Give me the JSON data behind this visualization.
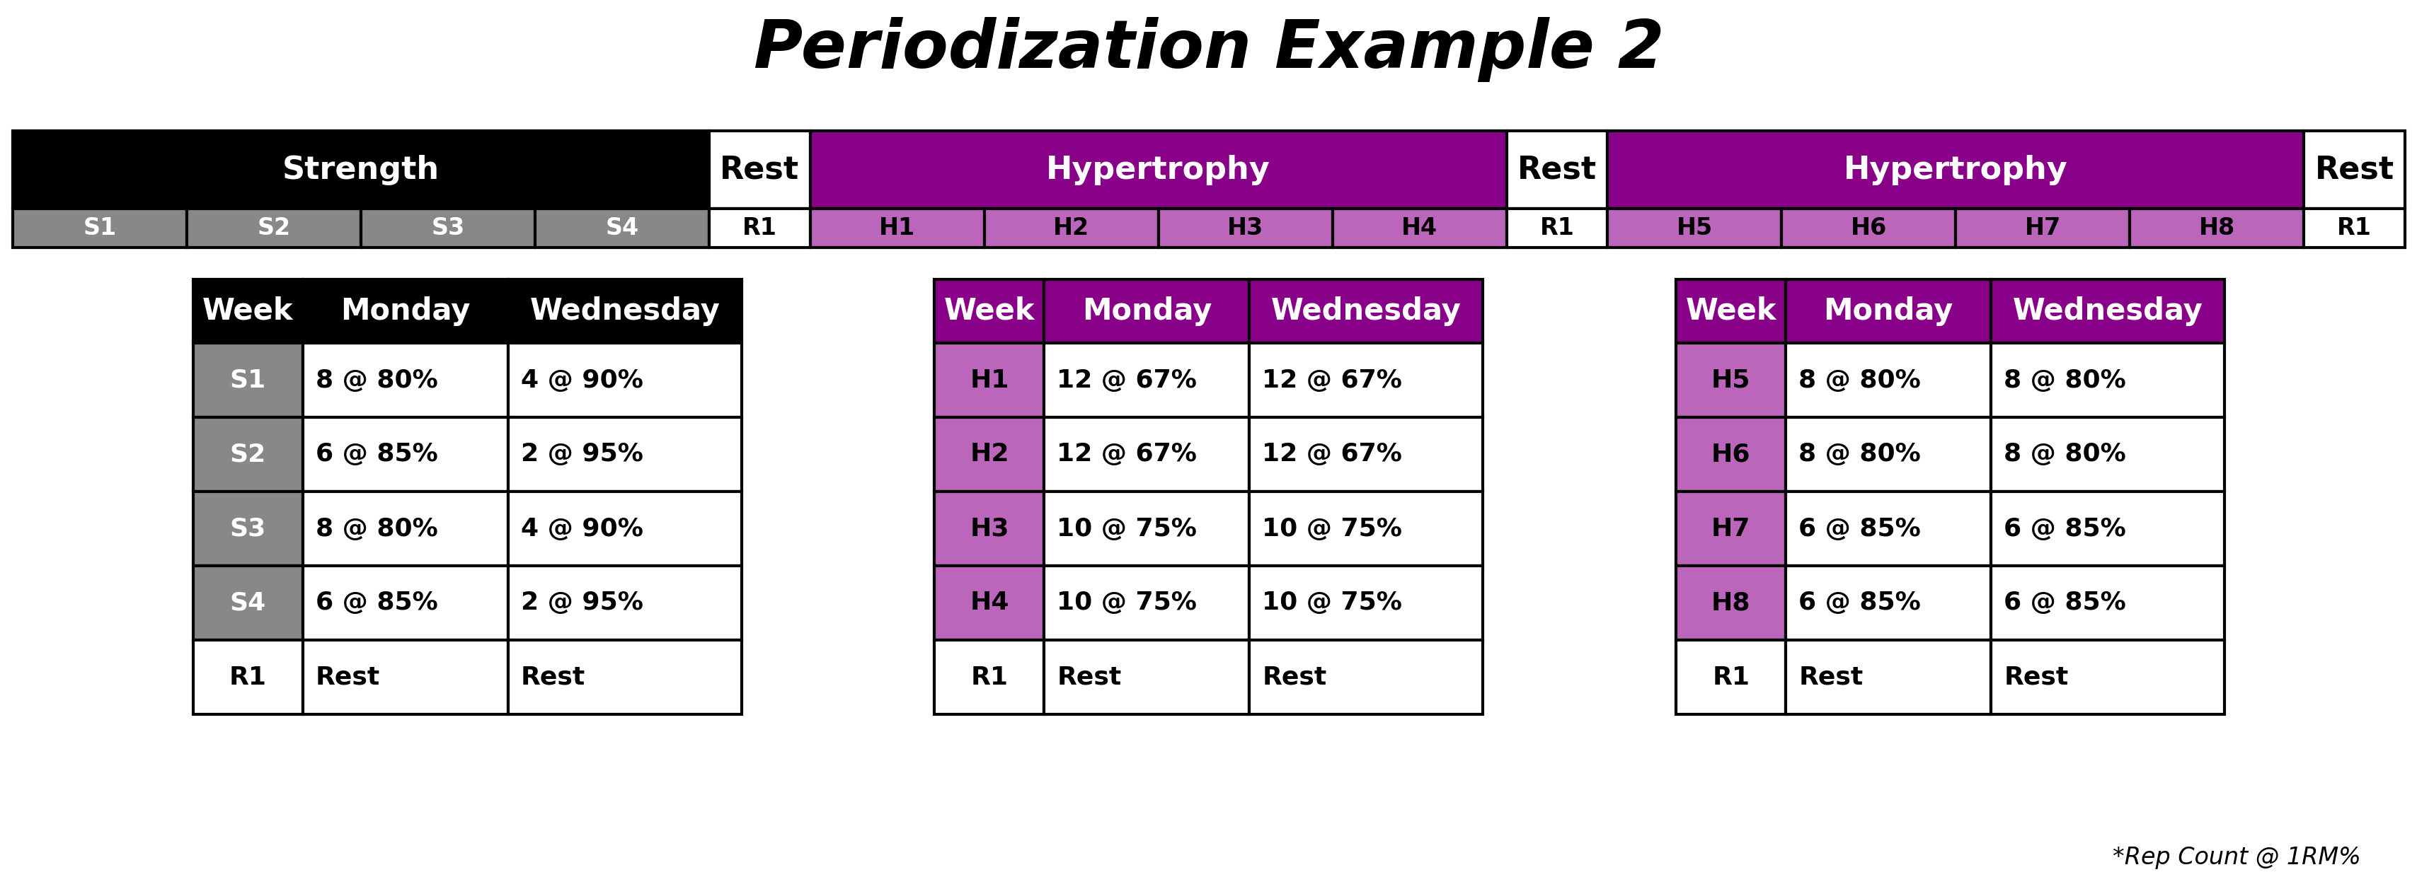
{
  "title": "Periodization Example 2",
  "title_fontsize": 68,
  "title_fontweight": "bold",
  "title_fontstyle": "italic",
  "timeline_cells": [
    {
      "label": "Strength",
      "span": 4,
      "bg": "#000000",
      "fg": "#ffffff",
      "bold": true
    },
    {
      "label": "Rest",
      "span": 1,
      "bg": "#ffffff",
      "fg": "#000000",
      "bold": true
    },
    {
      "label": "Hypertrophy",
      "span": 4,
      "bg": "#880088",
      "fg": "#ffffff",
      "bold": true
    },
    {
      "label": "Rest",
      "span": 1,
      "bg": "#ffffff",
      "fg": "#000000",
      "bold": true
    },
    {
      "label": "Hypertrophy",
      "span": 4,
      "bg": "#880088",
      "fg": "#ffffff",
      "bold": true
    },
    {
      "label": "Rest",
      "span": 1,
      "bg": "#ffffff",
      "fg": "#000000",
      "bold": true
    }
  ],
  "week_cells": [
    {
      "label": "S1",
      "bg": "#888888",
      "fg": "#ffffff",
      "wide": true
    },
    {
      "label": "S2",
      "bg": "#888888",
      "fg": "#ffffff",
      "wide": true
    },
    {
      "label": "S3",
      "bg": "#888888",
      "fg": "#ffffff",
      "wide": true
    },
    {
      "label": "S4",
      "bg": "#888888",
      "fg": "#ffffff",
      "wide": true
    },
    {
      "label": "R1",
      "bg": "#ffffff",
      "fg": "#000000",
      "wide": false
    },
    {
      "label": "H1",
      "bg": "#BB66BB",
      "fg": "#000000",
      "wide": true
    },
    {
      "label": "H2",
      "bg": "#BB66BB",
      "fg": "#000000",
      "wide": true
    },
    {
      "label": "H3",
      "bg": "#BB66BB",
      "fg": "#000000",
      "wide": true
    },
    {
      "label": "H4",
      "bg": "#BB66BB",
      "fg": "#000000",
      "wide": true
    },
    {
      "label": "R1",
      "bg": "#ffffff",
      "fg": "#000000",
      "wide": false
    },
    {
      "label": "H5",
      "bg": "#BB66BB",
      "fg": "#000000",
      "wide": true
    },
    {
      "label": "H6",
      "bg": "#BB66BB",
      "fg": "#000000",
      "wide": true
    },
    {
      "label": "H7",
      "bg": "#BB66BB",
      "fg": "#000000",
      "wide": true
    },
    {
      "label": "H8",
      "bg": "#BB66BB",
      "fg": "#000000",
      "wide": true
    },
    {
      "label": "R1",
      "bg": "#ffffff",
      "fg": "#000000",
      "wide": false
    }
  ],
  "tables": [
    {
      "header_bg": "#000000",
      "header_fg": "#ffffff",
      "week_col_bg": "#888888",
      "week_col_fg": "#ffffff",
      "headers": [
        "Week",
        "Monday",
        "Wednesday"
      ],
      "rows": [
        {
          "week": "S1",
          "monday": "8 @ 80%",
          "wednesday": "4 @ 90%"
        },
        {
          "week": "S2",
          "monday": "6 @ 85%",
          "wednesday": "2 @ 95%"
        },
        {
          "week": "S3",
          "monday": "8 @ 80%",
          "wednesday": "4 @ 90%"
        },
        {
          "week": "S4",
          "monday": "6 @ 85%",
          "wednesday": "2 @ 95%"
        },
        {
          "week": "R1",
          "monday": "Rest",
          "wednesday": "Rest"
        }
      ]
    },
    {
      "header_bg": "#880088",
      "header_fg": "#ffffff",
      "week_col_bg": "#BB66BB",
      "week_col_fg": "#000000",
      "headers": [
        "Week",
        "Monday",
        "Wednesday"
      ],
      "rows": [
        {
          "week": "H1",
          "monday": "12 @ 67%",
          "wednesday": "12 @ 67%"
        },
        {
          "week": "H2",
          "monday": "12 @ 67%",
          "wednesday": "12 @ 67%"
        },
        {
          "week": "H3",
          "monday": "10 @ 75%",
          "wednesday": "10 @ 75%"
        },
        {
          "week": "H4",
          "monday": "10 @ 75%",
          "wednesday": "10 @ 75%"
        },
        {
          "week": "R1",
          "monday": "Rest",
          "wednesday": "Rest"
        }
      ]
    },
    {
      "header_bg": "#880088",
      "header_fg": "#ffffff",
      "week_col_bg": "#BB66BB",
      "week_col_fg": "#000000",
      "headers": [
        "Week",
        "Monday",
        "Wednesday"
      ],
      "rows": [
        {
          "week": "H5",
          "monday": "8 @ 80%",
          "wednesday": "8 @ 80%"
        },
        {
          "week": "H6",
          "monday": "8 @ 80%",
          "wednesday": "8 @ 80%"
        },
        {
          "week": "H7",
          "monday": "6 @ 85%",
          "wednesday": "6 @ 85%"
        },
        {
          "week": "H8",
          "monday": "6 @ 85%",
          "wednesday": "6 @ 85%"
        },
        {
          "week": "R1",
          "monday": "Rest",
          "wednesday": "Rest"
        }
      ]
    }
  ],
  "footer_note": "*Rep Count @ 1RM%",
  "bg_color": "#ffffff",
  "border_color": "#000000"
}
